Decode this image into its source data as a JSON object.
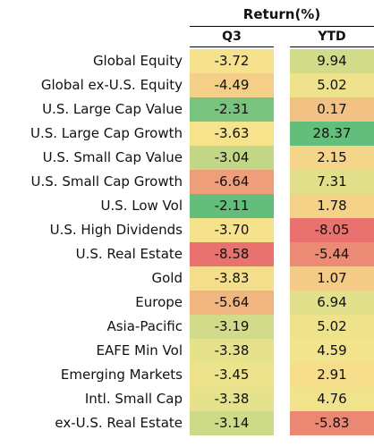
{
  "header": {
    "title": "Return(%)",
    "col_q3": "Q3",
    "col_ytd": "YTD"
  },
  "chart_data": {
    "type": "heatmap",
    "title": "Return(%)",
    "columns": [
      "Q3",
      "YTD"
    ],
    "colors": {
      "low": "#e9726e",
      "mid": "#f6e58d",
      "high": "#63be7b"
    },
    "rows": [
      {
        "label": "Global Equity",
        "q3": "-3.72",
        "ytd": "9.94"
      },
      {
        "label": "Global ex-U.S. Equity",
        "q3": "-4.49",
        "ytd": "5.02"
      },
      {
        "label": "U.S. Large Cap Value",
        "q3": "-2.31",
        "ytd": "0.17"
      },
      {
        "label": "U.S. Large Cap Growth",
        "q3": "-3.63",
        "ytd": "28.37"
      },
      {
        "label": "U.S. Small Cap Value",
        "q3": "-3.04",
        "ytd": "2.15"
      },
      {
        "label": "U.S. Small Cap Growth",
        "q3": "-6.64",
        "ytd": "7.31"
      },
      {
        "label": "U.S. Low Vol",
        "q3": "-2.11",
        "ytd": "1.78"
      },
      {
        "label": "U.S. High Dividends",
        "q3": "-3.70",
        "ytd": "-8.05"
      },
      {
        "label": "U.S. Real Estate",
        "q3": "-8.58",
        "ytd": "-5.44"
      },
      {
        "label": "Gold",
        "q3": "-3.83",
        "ytd": "1.07"
      },
      {
        "label": "Europe",
        "q3": "-5.64",
        "ytd": "6.94"
      },
      {
        "label": "Asia-Pacific",
        "q3": "-3.19",
        "ytd": "5.02"
      },
      {
        "label": "EAFE Min Vol",
        "q3": "-3.38",
        "ytd": "4.59"
      },
      {
        "label": "Emerging Markets",
        "q3": "-3.45",
        "ytd": "2.91"
      },
      {
        "label": "Intl. Small Cap",
        "q3": "-3.38",
        "ytd": "4.76"
      },
      {
        "label": "ex-U.S. Real Estate",
        "q3": "-3.14",
        "ytd": "-5.83"
      }
    ]
  }
}
